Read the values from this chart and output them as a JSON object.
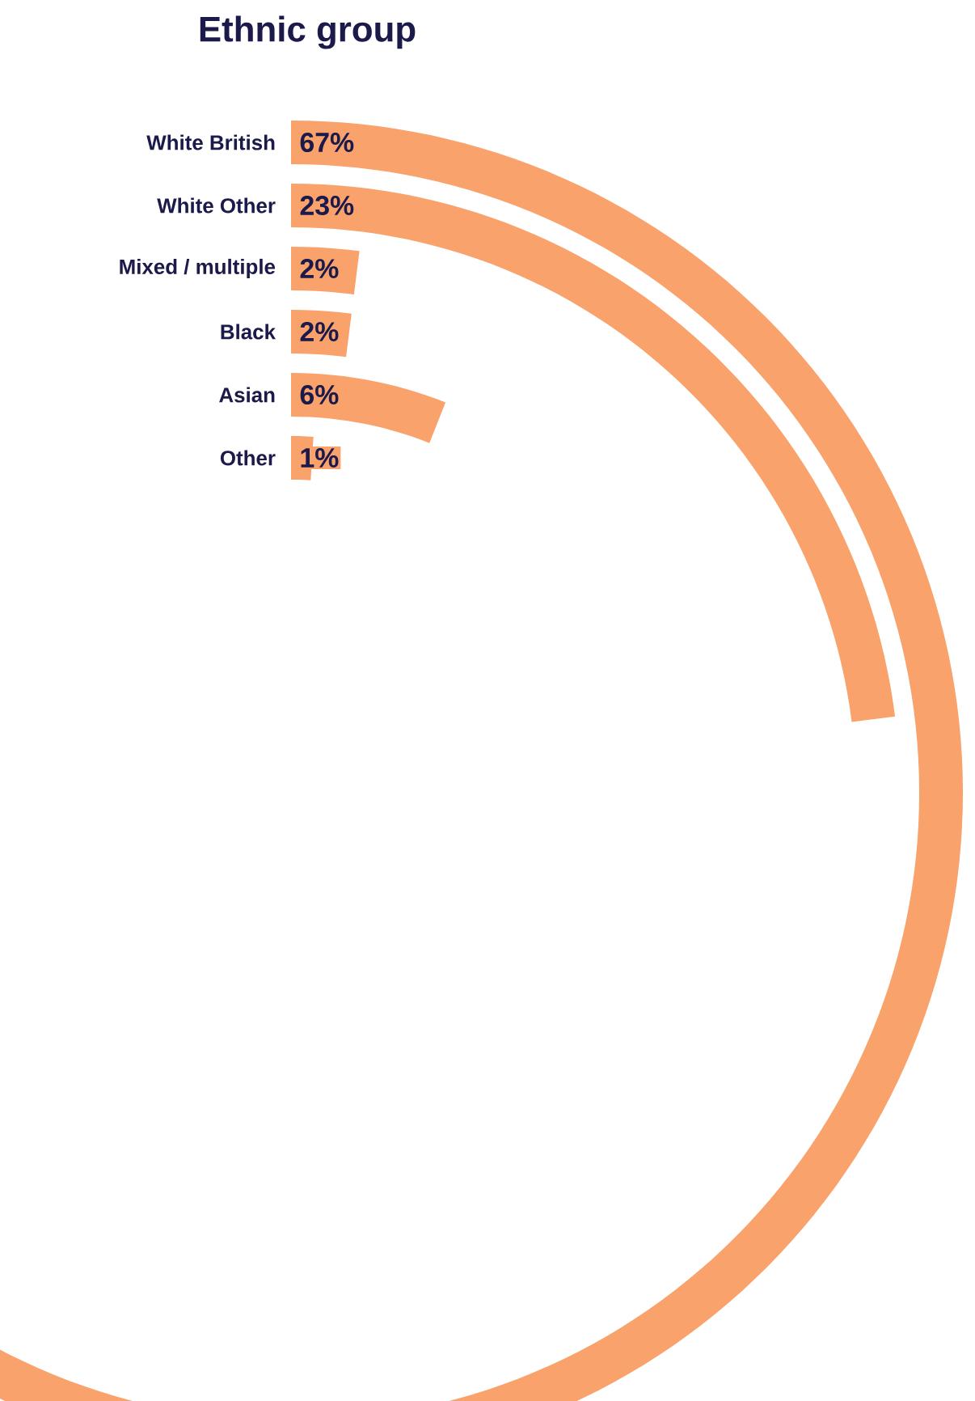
{
  "chart_data": {
    "type": "other",
    "title": "Ethnic group",
    "categories": [
      "White British",
      "White Other",
      "Mixed / multiple",
      "Black",
      "Asian",
      "Other"
    ],
    "values": [
      67,
      23,
      2,
      2,
      6,
      1
    ],
    "value_labels": [
      "67%",
      "23%",
      "2%",
      "2%",
      "6%",
      "1%"
    ],
    "color": "#f9a26c"
  }
}
